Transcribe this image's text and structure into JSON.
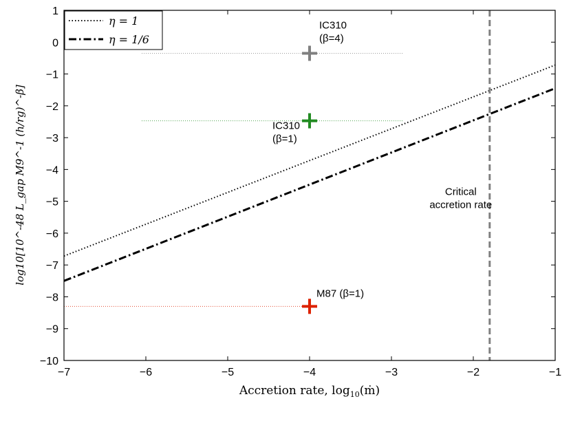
{
  "chart_data": {
    "type": "line",
    "xlabel": "Accretion rate, log10(ṁ)",
    "ylabel": "log10[10^-48 L_gap M9^-1 (h/rg)^-β]",
    "xlim": [
      -7,
      -1
    ],
    "ylim": [
      -10,
      1
    ],
    "x_ticks": [
      -7,
      -6,
      -5,
      -4,
      -3,
      -2,
      -1
    ],
    "y_ticks": [
      1,
      0,
      -1,
      -2,
      -3,
      -4,
      -5,
      -6,
      -7,
      -8,
      -9,
      -10
    ],
    "grid": false,
    "legend_placement": "top-left",
    "series": [
      {
        "name": "η = 1",
        "style": "dotted",
        "color": "#000000",
        "x": [
          -7,
          -1
        ],
        "y": [
          -6.72,
          -0.72
        ]
      },
      {
        "name": "η = 1/6",
        "style": "dash-dot",
        "color": "#000000",
        "x": [
          -7,
          -1
        ],
        "y": [
          -7.5,
          -1.45
        ]
      }
    ],
    "vertical_lines": [
      {
        "x": -1.8,
        "style": "dashed",
        "color": "#808080",
        "label_lines": [
          "Critical",
          "accretion rate"
        ]
      }
    ],
    "markers": [
      {
        "x": -4,
        "y": -0.35,
        "color": "#808080",
        "label_lines": [
          "IC310",
          "(β=4)"
        ],
        "hrange": [
          -6.05,
          -2.85
        ]
      },
      {
        "x": -4,
        "y": -2.47,
        "color": "#228B22",
        "label_lines": [
          "IC310",
          "(β=1)"
        ],
        "hrange": [
          -6.05,
          -2.85
        ]
      },
      {
        "x": -4,
        "y": -8.3,
        "color": "#DD2200",
        "label_lines": [
          "M87 (β=1)"
        ],
        "hrange": [
          -7,
          -4
        ]
      }
    ]
  }
}
